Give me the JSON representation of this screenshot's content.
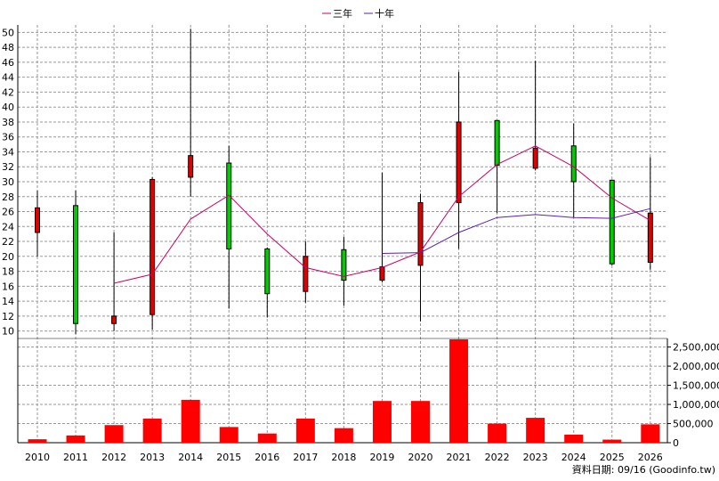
{
  "chart_data": {
    "type": "candlestick+bar",
    "legend": {
      "position": "top-center",
      "items": [
        {
          "label": "三年",
          "color": "#cc0066"
        },
        {
          "label": "十年",
          "color": "#5a1fb5"
        }
      ]
    },
    "categories": [
      "2010",
      "2011",
      "2012",
      "2013",
      "2014",
      "2015",
      "2016",
      "2017",
      "2018",
      "2019",
      "2020",
      "2021",
      "2022",
      "2023",
      "2024",
      "2025",
      "2026"
    ],
    "price_axis": {
      "range": [
        9,
        51
      ],
      "ticks": [
        10,
        12,
        14,
        16,
        18,
        20,
        22,
        24,
        26,
        28,
        30,
        32,
        34,
        36,
        38,
        40,
        42,
        44,
        46,
        48,
        50
      ]
    },
    "candles": [
      {
        "year": "2010",
        "open": 26.5,
        "close": 23.2,
        "high": 28.8,
        "low": 20.0,
        "color": "#e00000"
      },
      {
        "year": "2011",
        "open": 11.0,
        "close": 26.8,
        "high": 28.8,
        "low": 9.6,
        "color": "#00cc00"
      },
      {
        "year": "2012",
        "open": 12.0,
        "close": 11.0,
        "high": 23.2,
        "low": 10.0,
        "color": "#e00000"
      },
      {
        "year": "2013",
        "open": 30.3,
        "close": 12.2,
        "high": 30.6,
        "low": 10.2,
        "color": "#e00000"
      },
      {
        "year": "2014",
        "open": 33.5,
        "close": 30.6,
        "high": 50.5,
        "low": 28.0,
        "color": "#e00000"
      },
      {
        "year": "2015",
        "open": 21.0,
        "close": 32.5,
        "high": 34.8,
        "low": 13.0,
        "color": "#00cc00"
      },
      {
        "year": "2016",
        "open": 15.0,
        "close": 21.0,
        "high": 21.2,
        "low": 11.8,
        "color": "#00cc00"
      },
      {
        "year": "2017",
        "open": 20.0,
        "close": 15.3,
        "high": 22.0,
        "low": 13.8,
        "color": "#e00000"
      },
      {
        "year": "2018",
        "open": 16.8,
        "close": 20.9,
        "high": 22.6,
        "low": 13.4,
        "color": "#00cc00"
      },
      {
        "year": "2019",
        "open": 18.6,
        "close": 16.8,
        "high": 31.2,
        "low": 16.5,
        "color": "#e00000"
      },
      {
        "year": "2020",
        "open": 27.2,
        "close": 18.8,
        "high": 28.4,
        "low": 11.3,
        "color": "#e00000"
      },
      {
        "year": "2021",
        "open": 38.0,
        "close": 27.2,
        "high": 44.7,
        "low": 21.0,
        "color": "#e00000"
      },
      {
        "year": "2022",
        "open": 32.2,
        "close": 38.2,
        "high": 38.2,
        "low": 25.8,
        "color": "#00cc00"
      },
      {
        "year": "2023",
        "open": 34.5,
        "close": 31.8,
        "high": 46.2,
        "low": 31.5,
        "color": "#e00000"
      },
      {
        "year": "2024",
        "open": 30.0,
        "close": 34.8,
        "high": 37.8,
        "low": 25.2,
        "color": "#00cc00"
      },
      {
        "year": "2025",
        "open": 19.0,
        "close": 30.2,
        "high": 30.3,
        "low": 18.8,
        "color": "#00cc00"
      },
      {
        "year": "2026",
        "open": 25.8,
        "close": 19.2,
        "high": 33.3,
        "low": 18.2,
        "color": "#e00000"
      }
    ],
    "series": [
      {
        "name": "三年",
        "color": "#cc0066",
        "values": [
          null,
          null,
          16.4,
          17.6,
          25.0,
          28.2,
          23.0,
          18.5,
          17.3,
          18.5,
          20.6,
          28.0,
          32.3,
          34.8,
          32.0,
          27.8,
          24.8
        ]
      },
      {
        "name": "十年",
        "color": "#5a1fb5",
        "values": [
          null,
          null,
          null,
          null,
          null,
          null,
          null,
          null,
          null,
          20.4,
          20.5,
          23.2,
          25.2,
          25.6,
          25.2,
          25.1,
          26.4
        ]
      }
    ],
    "volume_axis": {
      "range": [
        0,
        2700000
      ],
      "ticks": [
        0,
        500000,
        1000000,
        1500000,
        2000000,
        2500000
      ],
      "tick_labels": [
        "0",
        "500,000",
        "1,000,000",
        "1,500,000",
        "2,000,000",
        "2,500,000"
      ]
    },
    "volume_color": "#ff0000",
    "volumes": [
      90000,
      190000,
      460000,
      630000,
      1120000,
      410000,
      240000,
      630000,
      380000,
      1090000,
      1090000,
      2700000,
      500000,
      650000,
      210000,
      80000,
      480000
    ]
  },
  "footer_note": "資料日期: 09/16  (Goodinfo.tw)"
}
